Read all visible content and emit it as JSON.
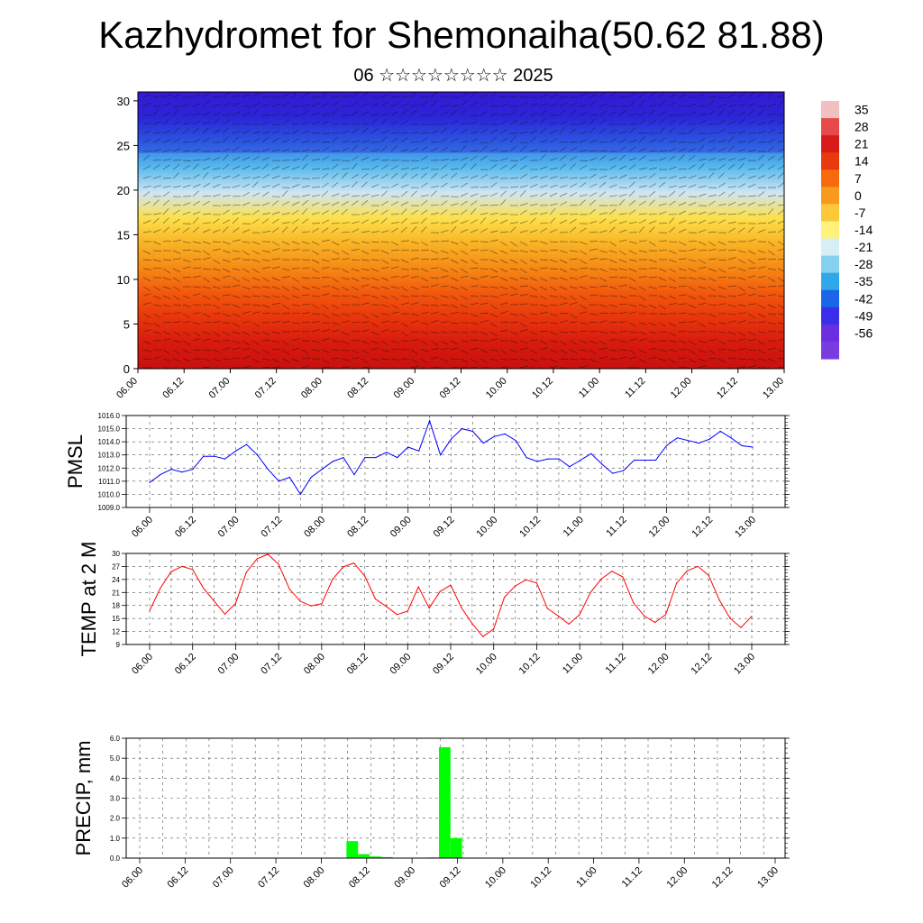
{
  "title": "Kazhydromet for Shemonaiha(50.62 81.88)",
  "subtitle": "06 ☆☆☆☆☆☆☆☆ 2025",
  "time_labels": [
    "06.00",
    "06.12",
    "07.00",
    "07.12",
    "08.00",
    "08.12",
    "09.00",
    "09.12",
    "10.00",
    "10.12",
    "11.00",
    "11.12",
    "12.00",
    "12.12",
    "13.00"
  ],
  "colors": {
    "pmsl": "#0000ff",
    "temp": "#ff0000",
    "precip": "#00ff00"
  },
  "chart_data": [
    {
      "type": "heatmap",
      "name": "vertical-cross-section",
      "yticks": [
        0,
        5,
        10,
        15,
        20,
        25,
        30
      ],
      "ylim": [
        0,
        31
      ],
      "colorbar": {
        "labels": [
          "35",
          "28",
          "21",
          "14",
          "7",
          "0",
          "-7",
          "-14",
          "-21",
          "-28",
          "-35",
          "-42",
          "-49",
          "-56"
        ],
        "colors": [
          "#f3c0c0",
          "#e8494a",
          "#d91a1a",
          "#e83a0c",
          "#f56a0c",
          "#f89a1c",
          "#fbc83a",
          "#fff27a",
          "#d6eef6",
          "#86d0f0",
          "#2fa8ea",
          "#1a66e8",
          "#3a2fe8",
          "#6a2fe0",
          "#7a3ce0"
        ]
      },
      "profile_colors": [
        "#c9100e",
        "#d81a0e",
        "#e8350c",
        "#f2580d",
        "#f68a14",
        "#f9b526",
        "#fde04c",
        "#cfe6f2",
        "#58baed",
        "#2c79e6",
        "#2c2bd8",
        "#3a1bd0"
      ]
    },
    {
      "type": "line",
      "ylabel": "PMSL",
      "ylim": [
        1009.0,
        1016.0
      ],
      "yticks": [
        "1009.0",
        "1010.0",
        "1011.0",
        "1012.0",
        "1013.0",
        "1014.0",
        "1015.0",
        "1016.0"
      ],
      "values": [
        1010.9,
        1011.5,
        1011.9,
        1011.7,
        1011.9,
        1012.9,
        1012.9,
        1012.7,
        1013.3,
        1013.8,
        1013.0,
        1011.9,
        1011.0,
        1011.3,
        1010.0,
        1011.3,
        1011.9,
        1012.5,
        1012.8,
        1011.5,
        1012.8,
        1012.8,
        1013.2,
        1012.8,
        1013.6,
        1013.3,
        1015.6,
        1013.0,
        1014.2,
        1015.0,
        1014.8,
        1013.9,
        1014.4,
        1014.6,
        1014.1,
        1012.8,
        1012.5,
        1012.7,
        1012.7,
        1012.1,
        1012.6,
        1013.1,
        1012.3,
        1011.6,
        1011.8,
        1012.6,
        1012.6,
        1012.6,
        1013.7,
        1014.3,
        1014.1,
        1013.9,
        1014.2,
        1014.8,
        1014.3,
        1013.7,
        1013.6
      ]
    },
    {
      "type": "line",
      "ylabel": "TEMP at 2 M",
      "ylim": [
        9,
        30
      ],
      "yticks": [
        "9",
        "12",
        "15",
        "18",
        "21",
        "24",
        "27",
        "30"
      ],
      "values": [
        16.8,
        22.0,
        25.8,
        27.0,
        26.3,
        22.0,
        19.0,
        16.0,
        18.5,
        25.7,
        28.8,
        29.8,
        27.5,
        21.8,
        19.0,
        17.9,
        18.4,
        24.0,
        26.9,
        27.8,
        24.8,
        19.5,
        17.8,
        15.9,
        16.7,
        22.3,
        17.4,
        21.2,
        22.7,
        17.5,
        13.8,
        10.8,
        12.6,
        19.9,
        22.5,
        23.9,
        23.2,
        17.3,
        15.6,
        13.7,
        15.9,
        21.0,
        24.1,
        25.9,
        24.6,
        18.6,
        15.6,
        14.1,
        15.9,
        23.1,
        26.0,
        27.0,
        24.9,
        19.2,
        15.0,
        12.9,
        15.5
      ]
    },
    {
      "type": "bar",
      "ylabel": "PRECIP, mm",
      "ylim": [
        0,
        6.0
      ],
      "yticks": [
        "0.0",
        "1.0",
        "2.0",
        "3.0",
        "4.0",
        "5.0",
        "6.0"
      ],
      "values": [
        0,
        0,
        0,
        0,
        0,
        0,
        0,
        0,
        0,
        0,
        0,
        0,
        0,
        0,
        0,
        0,
        0,
        0,
        0.85,
        0.2,
        0.08,
        0.05,
        0,
        0,
        0,
        0.03,
        5.55,
        1.0,
        0,
        0,
        0,
        0,
        0,
        0,
        0,
        0,
        0,
        0,
        0,
        0,
        0,
        0,
        0,
        0,
        0,
        0,
        0,
        0,
        0,
        0,
        0,
        0,
        0,
        0,
        0,
        0
      ]
    }
  ]
}
